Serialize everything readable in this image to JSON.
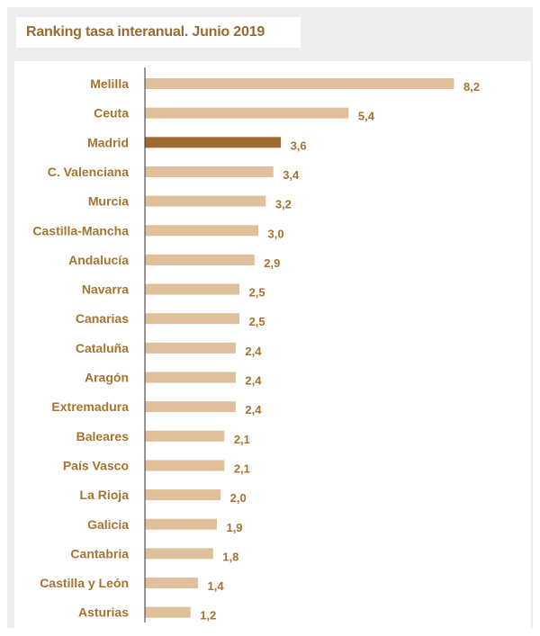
{
  "chart_data": {
    "type": "bar",
    "orientation": "horizontal",
    "title": "Ranking tasa interanual. Junio 2019",
    "categories": [
      "Melilla",
      "Ceuta",
      "Madrid",
      "C. Valenciana",
      "Murcia",
      "Castilla-Mancha",
      "Andalucía",
      "Navarra",
      "Canarias",
      "Cataluña",
      "Aragón",
      "Extremadura",
      "Baleares",
      "País Vasco",
      "La Rioja",
      "Galicia",
      "Cantabria",
      "Castilla y León",
      "Asturias"
    ],
    "values": [
      8.2,
      5.4,
      3.6,
      3.4,
      3.2,
      3.0,
      2.9,
      2.5,
      2.5,
      2.4,
      2.4,
      2.4,
      2.1,
      2.1,
      2.0,
      1.9,
      1.8,
      1.4,
      1.2
    ],
    "value_labels": [
      "8,2",
      "5,4",
      "3,6",
      "3,4",
      "3,2",
      "3,0",
      "2,9",
      "2,5",
      "2,5",
      "2,4",
      "2,4",
      "2,4",
      "2,1",
      "2,1",
      "2,0",
      "1,9",
      "1,8",
      "1,4",
      "1,2"
    ],
    "highlight": "Madrid",
    "colors": {
      "bar": "#dfc09a",
      "highlight": "#9e6a30",
      "text": "#a8732f",
      "title": "#9a6a2f",
      "panel": "#eeeeee",
      "axis": "#333333"
    },
    "xlim": [
      0,
      8.2
    ]
  }
}
